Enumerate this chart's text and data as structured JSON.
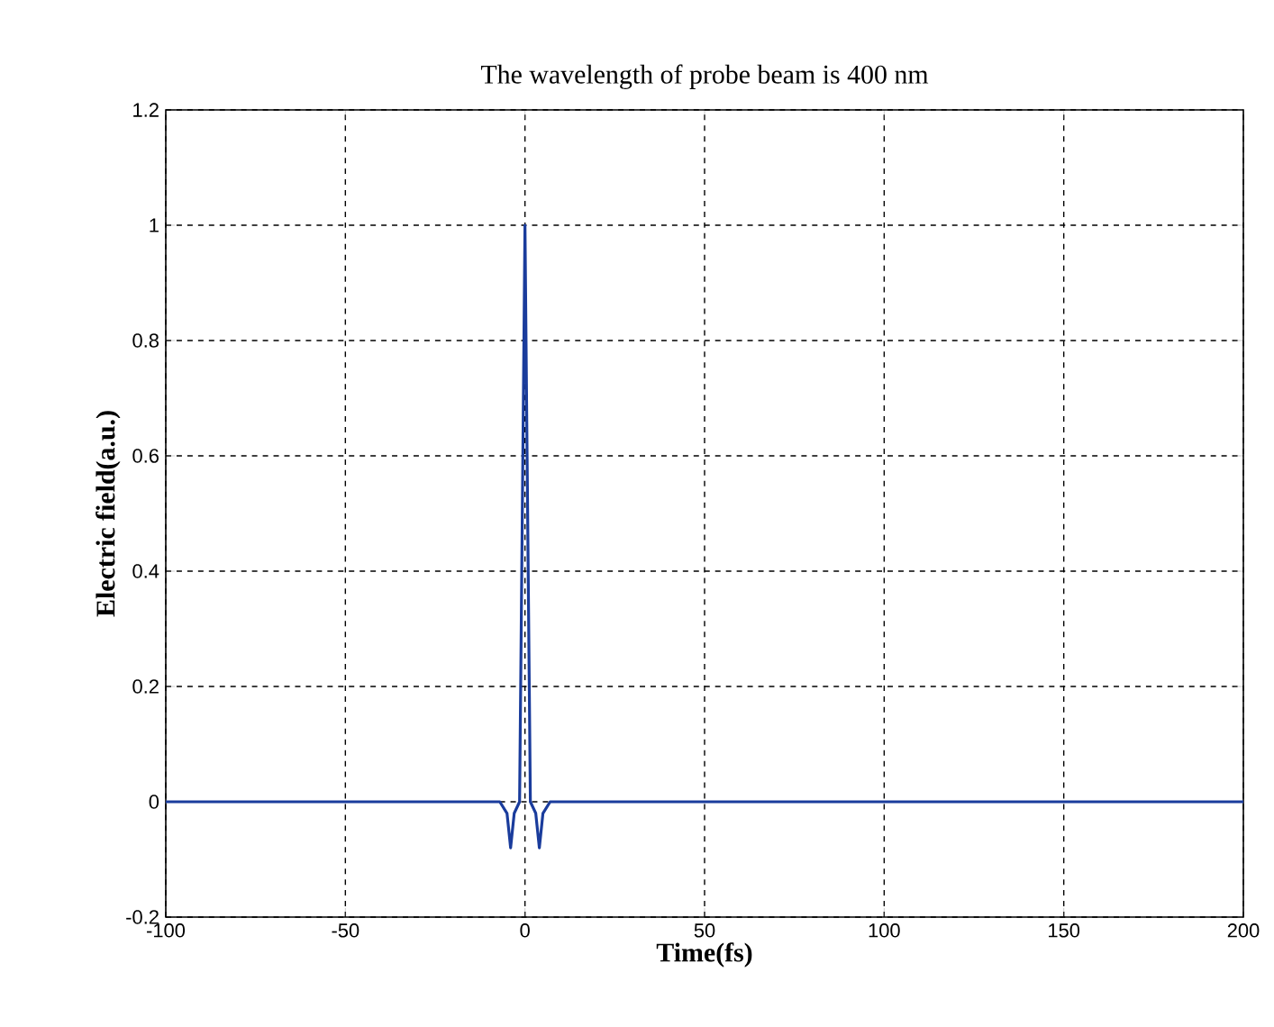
{
  "chart_data": {
    "type": "line",
    "title": "The wavelength of probe beam is 400 nm",
    "xlabel": "Time(fs)",
    "ylabel": "Electric field(a.u.)",
    "xlim": [
      -100,
      200
    ],
    "ylim": [
      -0.2,
      1.2
    ],
    "xticks": [
      -100,
      -50,
      0,
      50,
      100,
      150,
      200
    ],
    "yticks": [
      -0.2,
      0,
      0.2,
      0.4,
      0.6,
      0.8,
      1,
      1.2
    ],
    "grid": true,
    "line_style": "solid",
    "marker": "none",
    "series": [
      {
        "color": "#1a3c9c",
        "x": [
          -100,
          -7,
          -5,
          -4,
          -3,
          -1.5,
          -1,
          -0.5,
          0,
          0.5,
          1,
          1.5,
          3,
          4,
          5,
          7,
          200
        ],
        "values": [
          0,
          0,
          -0.02,
          -0.08,
          -0.02,
          0,
          0.33,
          0.66,
          1,
          0.66,
          0.33,
          0,
          -0.02,
          -0.08,
          -0.02,
          0,
          0
        ]
      }
    ]
  }
}
